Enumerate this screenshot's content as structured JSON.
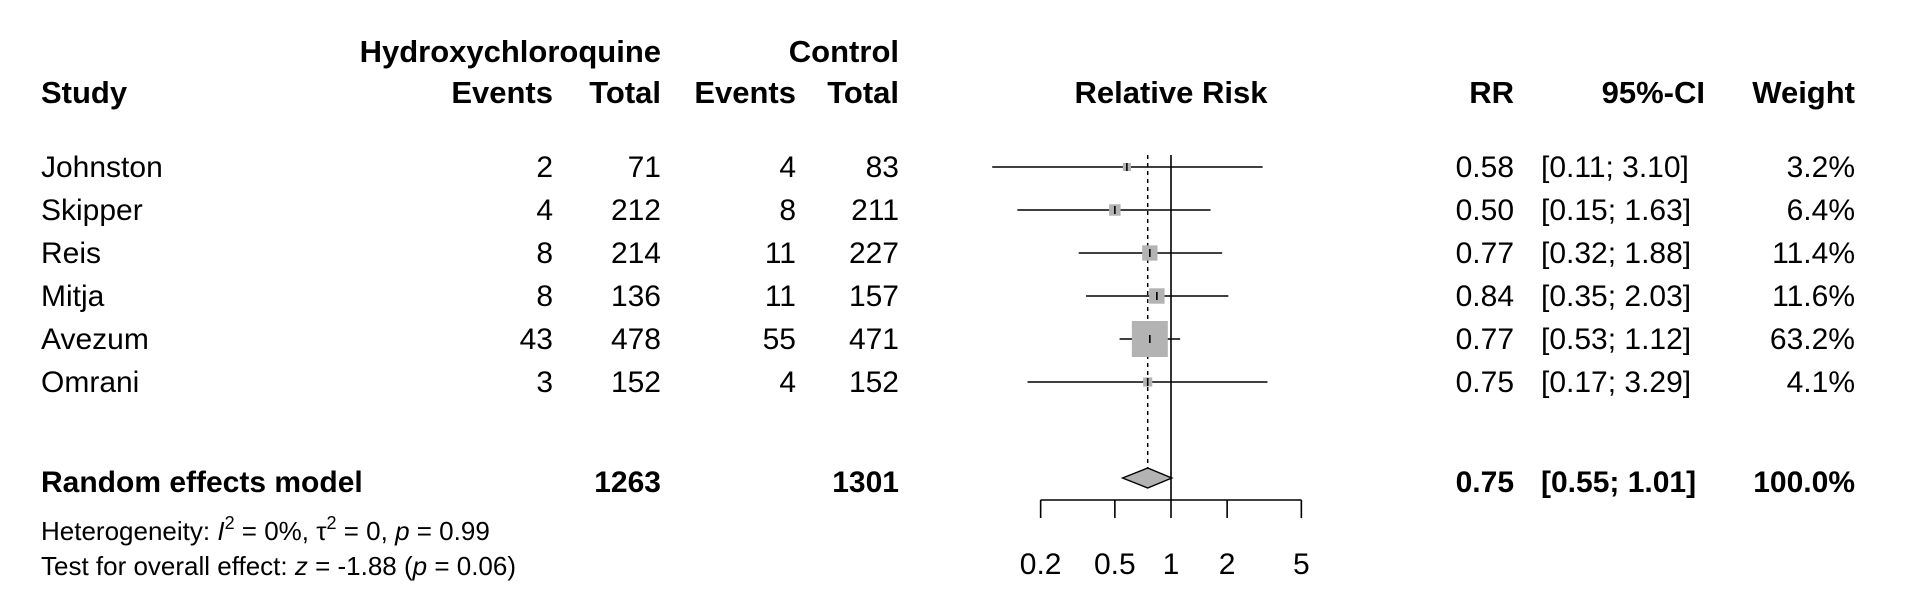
{
  "chart_data": {
    "type": "forest",
    "header": {
      "study": "Study",
      "group1": "Hydroxychloroquine",
      "group2": "Control",
      "events": "Events",
      "total": "Total",
      "effect": "Relative Risk",
      "rr": "RR",
      "ci": "95%-CI",
      "weight": "Weight"
    },
    "studies": [
      {
        "name": "Johnston",
        "e1": "2",
        "n1": "71",
        "e2": "4",
        "n2": "83",
        "rr": 0.58,
        "lo": 0.11,
        "hi": 3.1,
        "rr_text": "0.58",
        "ci_text": "[0.11; 3.10]",
        "weight": 3.2,
        "weight_text": "3.2%"
      },
      {
        "name": "Skipper",
        "e1": "4",
        "n1": "212",
        "e2": "8",
        "n2": "211",
        "rr": 0.5,
        "lo": 0.15,
        "hi": 1.63,
        "rr_text": "0.50",
        "ci_text": "[0.15; 1.63]",
        "weight": 6.4,
        "weight_text": "6.4%"
      },
      {
        "name": "Reis",
        "e1": "8",
        "n1": "214",
        "e2": "11",
        "n2": "227",
        "rr": 0.77,
        "lo": 0.32,
        "hi": 1.88,
        "rr_text": "0.77",
        "ci_text": "[0.32; 1.88]",
        "weight": 11.4,
        "weight_text": "11.4%"
      },
      {
        "name": "Mitja",
        "e1": "8",
        "n1": "136",
        "e2": "11",
        "n2": "157",
        "rr": 0.84,
        "lo": 0.35,
        "hi": 2.03,
        "rr_text": "0.84",
        "ci_text": "[0.35; 2.03]",
        "weight": 11.6,
        "weight_text": "11.6%"
      },
      {
        "name": "Avezum",
        "e1": "43",
        "n1": "478",
        "e2": "55",
        "n2": "471",
        "rr": 0.77,
        "lo": 0.53,
        "hi": 1.12,
        "rr_text": "0.77",
        "ci_text": "[0.53; 1.12]",
        "weight": 63.2,
        "weight_text": "63.2%"
      },
      {
        "name": "Omrani",
        "e1": "3",
        "n1": "152",
        "e2": "4",
        "n2": "152",
        "rr": 0.75,
        "lo": 0.17,
        "hi": 3.29,
        "rr_text": "0.75",
        "ci_text": "[0.17; 3.29]",
        "weight": 4.1,
        "weight_text": "4.1%"
      }
    ],
    "pooled": {
      "name": "Random effects model",
      "n1": "1263",
      "n2": "1301",
      "rr": 0.75,
      "lo": 0.55,
      "hi": 1.01,
      "rr_text": "0.75",
      "ci_text": "[0.55; 1.01]",
      "weight_text": "100.0%"
    },
    "heterogeneity": {
      "prefix": "Heterogeneity: ",
      "i_sym": "I",
      "sup": "2",
      "i_val": " = 0%, ",
      "tau_sym": "τ",
      "tau_val": " = 0, ",
      "p_sym": "p",
      "p_val": " = 0.99"
    },
    "overall_test": {
      "prefix": "Test for overall effect: ",
      "z_sym": "z",
      "z_val": " = -1.88 (",
      "p_sym": "p",
      "p_val": " = 0.06)"
    },
    "x_axis": {
      "scale": "log",
      "ticks": [
        0.2,
        0.5,
        1,
        2,
        5
      ],
      "tick_labels": [
        "0.2",
        "0.5",
        "1",
        "2",
        "5"
      ],
      "range": [
        0.2,
        5
      ]
    },
    "null_line": 1,
    "colors": {
      "square": "#b3b3b3",
      "diamond": "#b3b3b3",
      "line": "#000000"
    }
  }
}
